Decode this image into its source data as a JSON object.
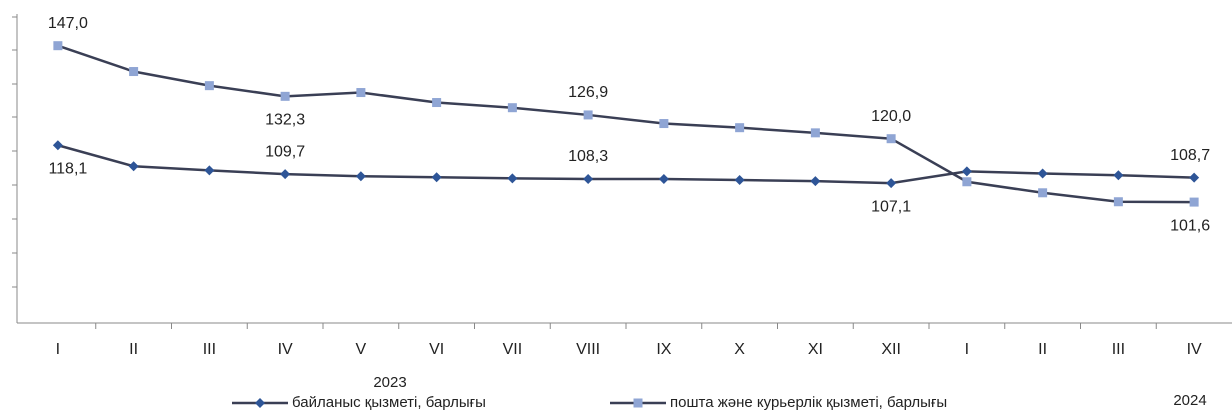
{
  "chart_data": {
    "type": "line",
    "categories": [
      "I",
      "II",
      "III",
      "IV",
      "V",
      "VI",
      "VII",
      "VIII",
      "IX",
      "X",
      "XI",
      "XII",
      "I",
      "II",
      "III",
      "IV"
    ],
    "x_groups": [
      "2023",
      "2024"
    ],
    "line_color": "#3a3f55",
    "series": [
      {
        "name": "байланыс қызметі, барлығы",
        "color": "#2e5597",
        "marker": "diamond",
        "values": [
          118.1,
          112.0,
          110.8,
          109.7,
          109.1,
          108.8,
          108.5,
          108.3,
          108.3,
          108.0,
          107.7,
          107.1,
          110.5,
          109.9,
          109.4,
          108.7
        ],
        "value_labels": [
          "118,1",
          null,
          null,
          "109,7",
          null,
          null,
          null,
          "108,3",
          null,
          null,
          null,
          "107,1",
          null,
          null,
          null,
          "108,7"
        ]
      },
      {
        "name": "пошта және курьерлік қызметі, барлығы",
        "color": "#8fa5d4",
        "marker": "square",
        "values": [
          147.0,
          139.5,
          135.4,
          132.3,
          133.4,
          130.5,
          129.0,
          126.9,
          124.4,
          123.2,
          121.7,
          120.0,
          107.5,
          104.3,
          101.7,
          101.6
        ],
        "value_labels": [
          "147,0",
          null,
          null,
          "132,3",
          null,
          null,
          null,
          "126,9",
          null,
          null,
          null,
          "120,0",
          null,
          null,
          null,
          "101,6"
        ]
      }
    ],
    "ylim": [
      66.5,
      156.2
    ],
    "legend": "bottom"
  }
}
